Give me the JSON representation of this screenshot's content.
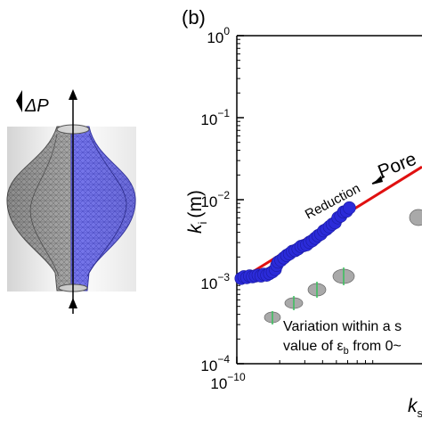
{
  "panel_label": "(b)",
  "left_figure": {
    "pressure_label": "ΔP"
  },
  "annotations": {
    "reduction": "Reduction",
    "pore": "Pore",
    "variation_line1": "Variation within a s",
    "variation_line2": "value of ε",
    "variation_sub": "b",
    "variation_line2_tail": " from 0~"
  },
  "colors": {
    "points": "#2b2bd9",
    "fit_line": "#e01010",
    "axes": "#000000",
    "mesh_gray": "#9a9a9a",
    "mesh_blue": "#7070e6"
  },
  "chart_data": {
    "type": "scatter",
    "scale": "log-log",
    "xlabel": "k",
    "xlabel_sub": "s",
    "ylabel": "k",
    "ylabel_sub": "i",
    "ylabel_unit": "(m)",
    "x_ticks": [
      {
        "base": "10",
        "exp": "−10"
      }
    ],
    "y_ticks": [
      {
        "base": "10",
        "exp": "0"
      },
      {
        "base": "10",
        "exp": "−1"
      },
      {
        "base": "10",
        "exp": "−2"
      },
      {
        "base": "10",
        "exp": "−3"
      },
      {
        "base": "10",
        "exp": "−4"
      }
    ],
    "ylim": [
      0.0001,
      1
    ],
    "xlim_log10": [
      -10,
      -8.7
    ],
    "series": [
      {
        "marker": "circle",
        "points_log10": [
          [
            -9.97,
            -2.96
          ],
          [
            -9.95,
            -2.94
          ],
          [
            -9.93,
            -2.95
          ],
          [
            -9.91,
            -2.93
          ],
          [
            -9.89,
            -2.94
          ],
          [
            -9.87,
            -2.93
          ],
          [
            -9.85,
            -2.92
          ],
          [
            -9.83,
            -2.93
          ],
          [
            -9.81,
            -2.91
          ],
          [
            -9.79,
            -2.92
          ],
          [
            -9.77,
            -2.9
          ],
          [
            -9.75,
            -2.88
          ],
          [
            -9.73,
            -2.85
          ],
          [
            -9.72,
            -2.8
          ],
          [
            -9.71,
            -2.76
          ],
          [
            -9.69,
            -2.74
          ],
          [
            -9.67,
            -2.71
          ],
          [
            -9.65,
            -2.68
          ],
          [
            -9.63,
            -2.66
          ],
          [
            -9.61,
            -2.63
          ],
          [
            -9.59,
            -2.62
          ],
          [
            -9.57,
            -2.6
          ],
          [
            -9.55,
            -2.57
          ],
          [
            -9.53,
            -2.56
          ],
          [
            -9.51,
            -2.55
          ],
          [
            -9.49,
            -2.52
          ],
          [
            -9.47,
            -2.5
          ],
          [
            -9.45,
            -2.47
          ],
          [
            -9.43,
            -2.44
          ],
          [
            -9.41,
            -2.42
          ],
          [
            -9.39,
            -2.38
          ],
          [
            -9.37,
            -2.36
          ],
          [
            -9.35,
            -2.33
          ],
          [
            -9.33,
            -2.3
          ],
          [
            -9.31,
            -2.28
          ],
          [
            -9.29,
            -2.22
          ],
          [
            -9.27,
            -2.2
          ],
          [
            -9.25,
            -2.15
          ],
          [
            -9.23,
            -2.14
          ],
          [
            -9.21,
            -2.1
          ]
        ]
      }
    ],
    "fit_line_log10": [
      [
        -10.0,
        -3.0
      ],
      [
        -8.7,
        -1.6
      ]
    ]
  }
}
